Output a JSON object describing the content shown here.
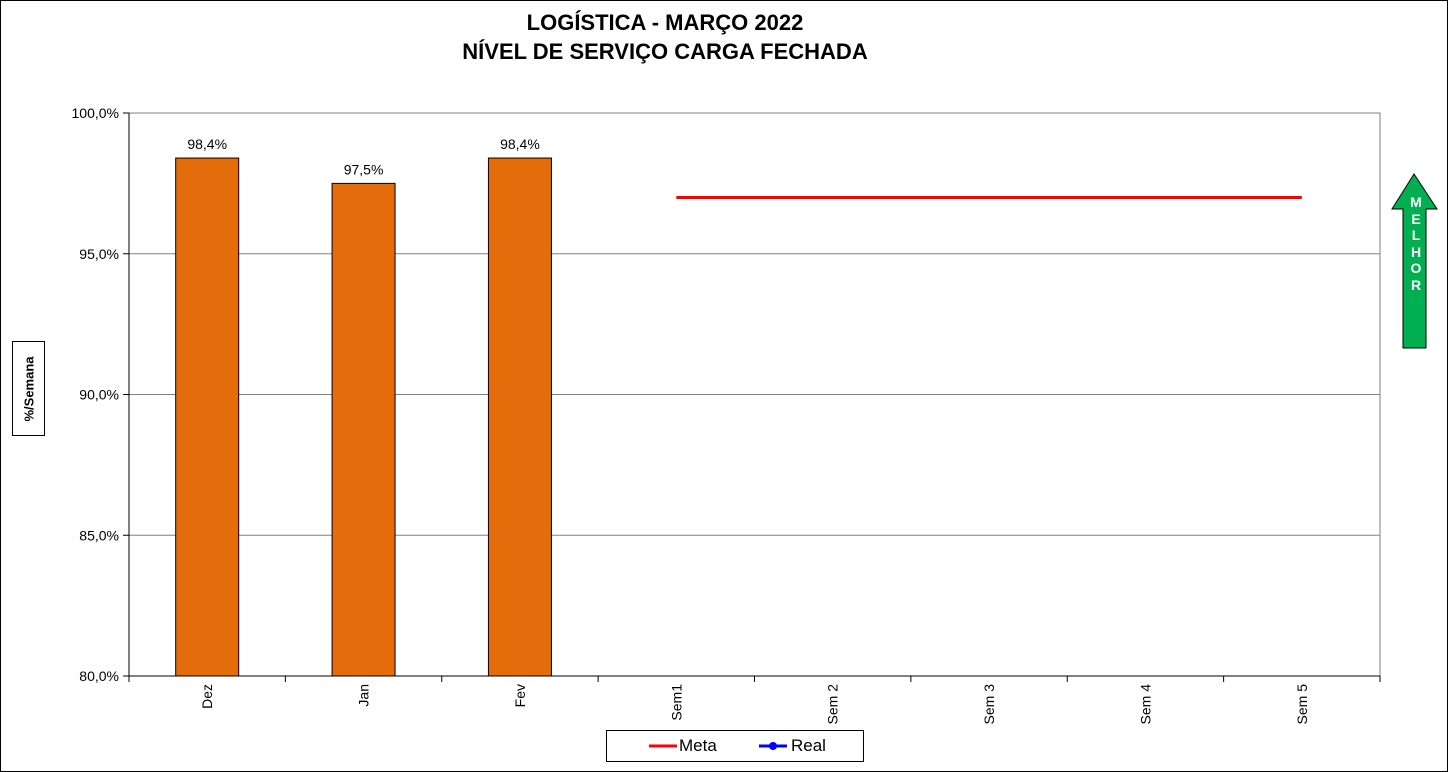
{
  "chart_data": {
    "type": "bar",
    "title": [
      "LOGÍSTICA - MARÇO 2022",
      "NÍVEL DE SERVIÇO CARGA FECHADA"
    ],
    "ylabel": "%/Semana",
    "xlabel": "",
    "categories": [
      "Dez",
      "Jan",
      "Fev",
      "Sem1",
      "Sem 2",
      "Sem 3",
      "Sem 4",
      "Sem 5"
    ],
    "bars": {
      "values": [
        98.4,
        97.5,
        98.4,
        null,
        null,
        null,
        null,
        null
      ],
      "labels": [
        "98,4%",
        "97,5%",
        "98,4%"
      ],
      "color": "#E46C0A"
    },
    "series": [
      {
        "name": "Meta",
        "values": [
          null,
          null,
          null,
          97.0,
          97.0,
          97.0,
          97.0,
          97.0
        ],
        "color": "#FF0000",
        "marker": "none"
      },
      {
        "name": "Real",
        "values": [
          null,
          null,
          null,
          null,
          null,
          null,
          null,
          null
        ],
        "color": "#0000FF",
        "marker": "circle"
      }
    ],
    "ylim": [
      80,
      100
    ],
    "yticks": [
      80,
      85,
      90,
      95,
      100
    ],
    "ytick_labels": [
      "80,0%",
      "85,0%",
      "90,0%",
      "95,0%",
      "100,0%"
    ],
    "grid": true,
    "legend_position": "bottom"
  },
  "indicator": {
    "text": "MELHOR",
    "color": "#00B050"
  }
}
